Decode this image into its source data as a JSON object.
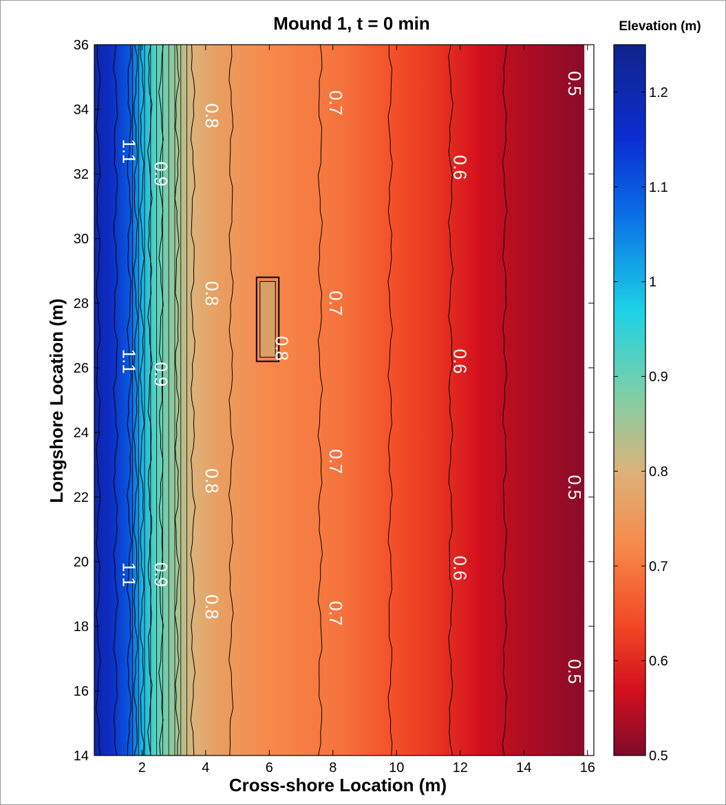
{
  "chart_data": {
    "type": "heatmap",
    "subtype": "filled-contour",
    "title": "Mound 1, t = 0 min",
    "xlabel": "Cross-shore Location (m)",
    "ylabel": "Longshore Location (m)",
    "xlim": [
      0.5,
      16.2
    ],
    "ylim": [
      14,
      36
    ],
    "data_xrange": [
      0.5,
      15.9
    ],
    "xticks": [
      2,
      4,
      6,
      8,
      10,
      12,
      14,
      16
    ],
    "yticks": [
      14,
      16,
      18,
      20,
      22,
      24,
      26,
      28,
      30,
      32,
      34,
      36
    ],
    "colorbar": {
      "title": "Elevation (m)",
      "range": [
        0.5,
        1.25
      ],
      "ticks": [
        0.5,
        0.6,
        0.7,
        0.8,
        0.9,
        1,
        1.1,
        1.2
      ],
      "colormap": "jet-reversed",
      "stops": [
        {
          "v": 0.5,
          "color": "#7f0a2a"
        },
        {
          "v": 0.57,
          "color": "#d4101e"
        },
        {
          "v": 0.64,
          "color": "#f24a25"
        },
        {
          "v": 0.72,
          "color": "#f7894a"
        },
        {
          "v": 0.8,
          "color": "#dcb27a"
        },
        {
          "v": 0.88,
          "color": "#7fcfa6"
        },
        {
          "v": 0.97,
          "color": "#1bd2e6"
        },
        {
          "v": 1.07,
          "color": "#0a6fe6"
        },
        {
          "v": 1.15,
          "color": "#0b2ed2"
        },
        {
          "v": 1.25,
          "color": "#10238a"
        }
      ]
    },
    "elevation_profile": {
      "x": [
        0.5,
        1.0,
        1.6,
        2.0,
        2.4,
        3.0,
        3.6,
        4.4,
        5.2,
        6.0,
        6.8,
        7.6,
        8.4,
        9.0,
        9.8,
        10.6,
        11.4,
        12.0,
        12.6,
        13.4,
        14.0,
        14.6,
        15.2,
        15.9
      ],
      "elevation": [
        1.21,
        1.17,
        1.1,
        1.0,
        0.92,
        0.86,
        0.8,
        0.76,
        0.74,
        0.72,
        0.71,
        0.7,
        0.69,
        0.67,
        0.65,
        0.63,
        0.61,
        0.59,
        0.57,
        0.55,
        0.54,
        0.53,
        0.52,
        0.51
      ]
    },
    "contour_levels": [
      0.5,
      0.55,
      0.6,
      0.65,
      0.7,
      0.75,
      0.8,
      0.85,
      0.9,
      0.95,
      1.0,
      1.05,
      1.1,
      1.15,
      1.2
    ],
    "mound": {
      "x": [
        5.6,
        6.3
      ],
      "y": [
        26.2,
        28.8
      ],
      "label": "0.8"
    },
    "contour_labels": [
      {
        "text": "1.1",
        "x": 1.4,
        "y": 32.7
      },
      {
        "text": "1.1",
        "x": 1.4,
        "y": 26.2
      },
      {
        "text": "1.1",
        "x": 1.4,
        "y": 19.6
      },
      {
        "text": "0.9",
        "x": 2.4,
        "y": 32.0
      },
      {
        "text": "0.9",
        "x": 2.4,
        "y": 25.8
      },
      {
        "text": "0.9",
        "x": 2.4,
        "y": 19.6
      },
      {
        "text": "0.8",
        "x": 4.0,
        "y": 33.8
      },
      {
        "text": "0.8",
        "x": 4.0,
        "y": 28.3
      },
      {
        "text": "0.8",
        "x": 4.0,
        "y": 22.5
      },
      {
        "text": "0.8",
        "x": 4.0,
        "y": 18.6
      },
      {
        "text": "0.7",
        "x": 7.9,
        "y": 34.2
      },
      {
        "text": "0.7",
        "x": 7.9,
        "y": 28.0
      },
      {
        "text": "0.7",
        "x": 7.9,
        "y": 23.1
      },
      {
        "text": "0.7",
        "x": 7.9,
        "y": 18.4
      },
      {
        "text": "0.6",
        "x": 11.8,
        "y": 32.2
      },
      {
        "text": "0.6",
        "x": 11.8,
        "y": 26.2
      },
      {
        "text": "0.6",
        "x": 11.8,
        "y": 19.8
      },
      {
        "text": "0.5",
        "x": 15.4,
        "y": 34.8
      },
      {
        "text": "0.5",
        "x": 15.4,
        "y": 22.3
      },
      {
        "text": "0.5",
        "x": 15.4,
        "y": 16.6
      },
      {
        "text": "0.8",
        "x": 6.2,
        "y": 26.6
      }
    ]
  }
}
